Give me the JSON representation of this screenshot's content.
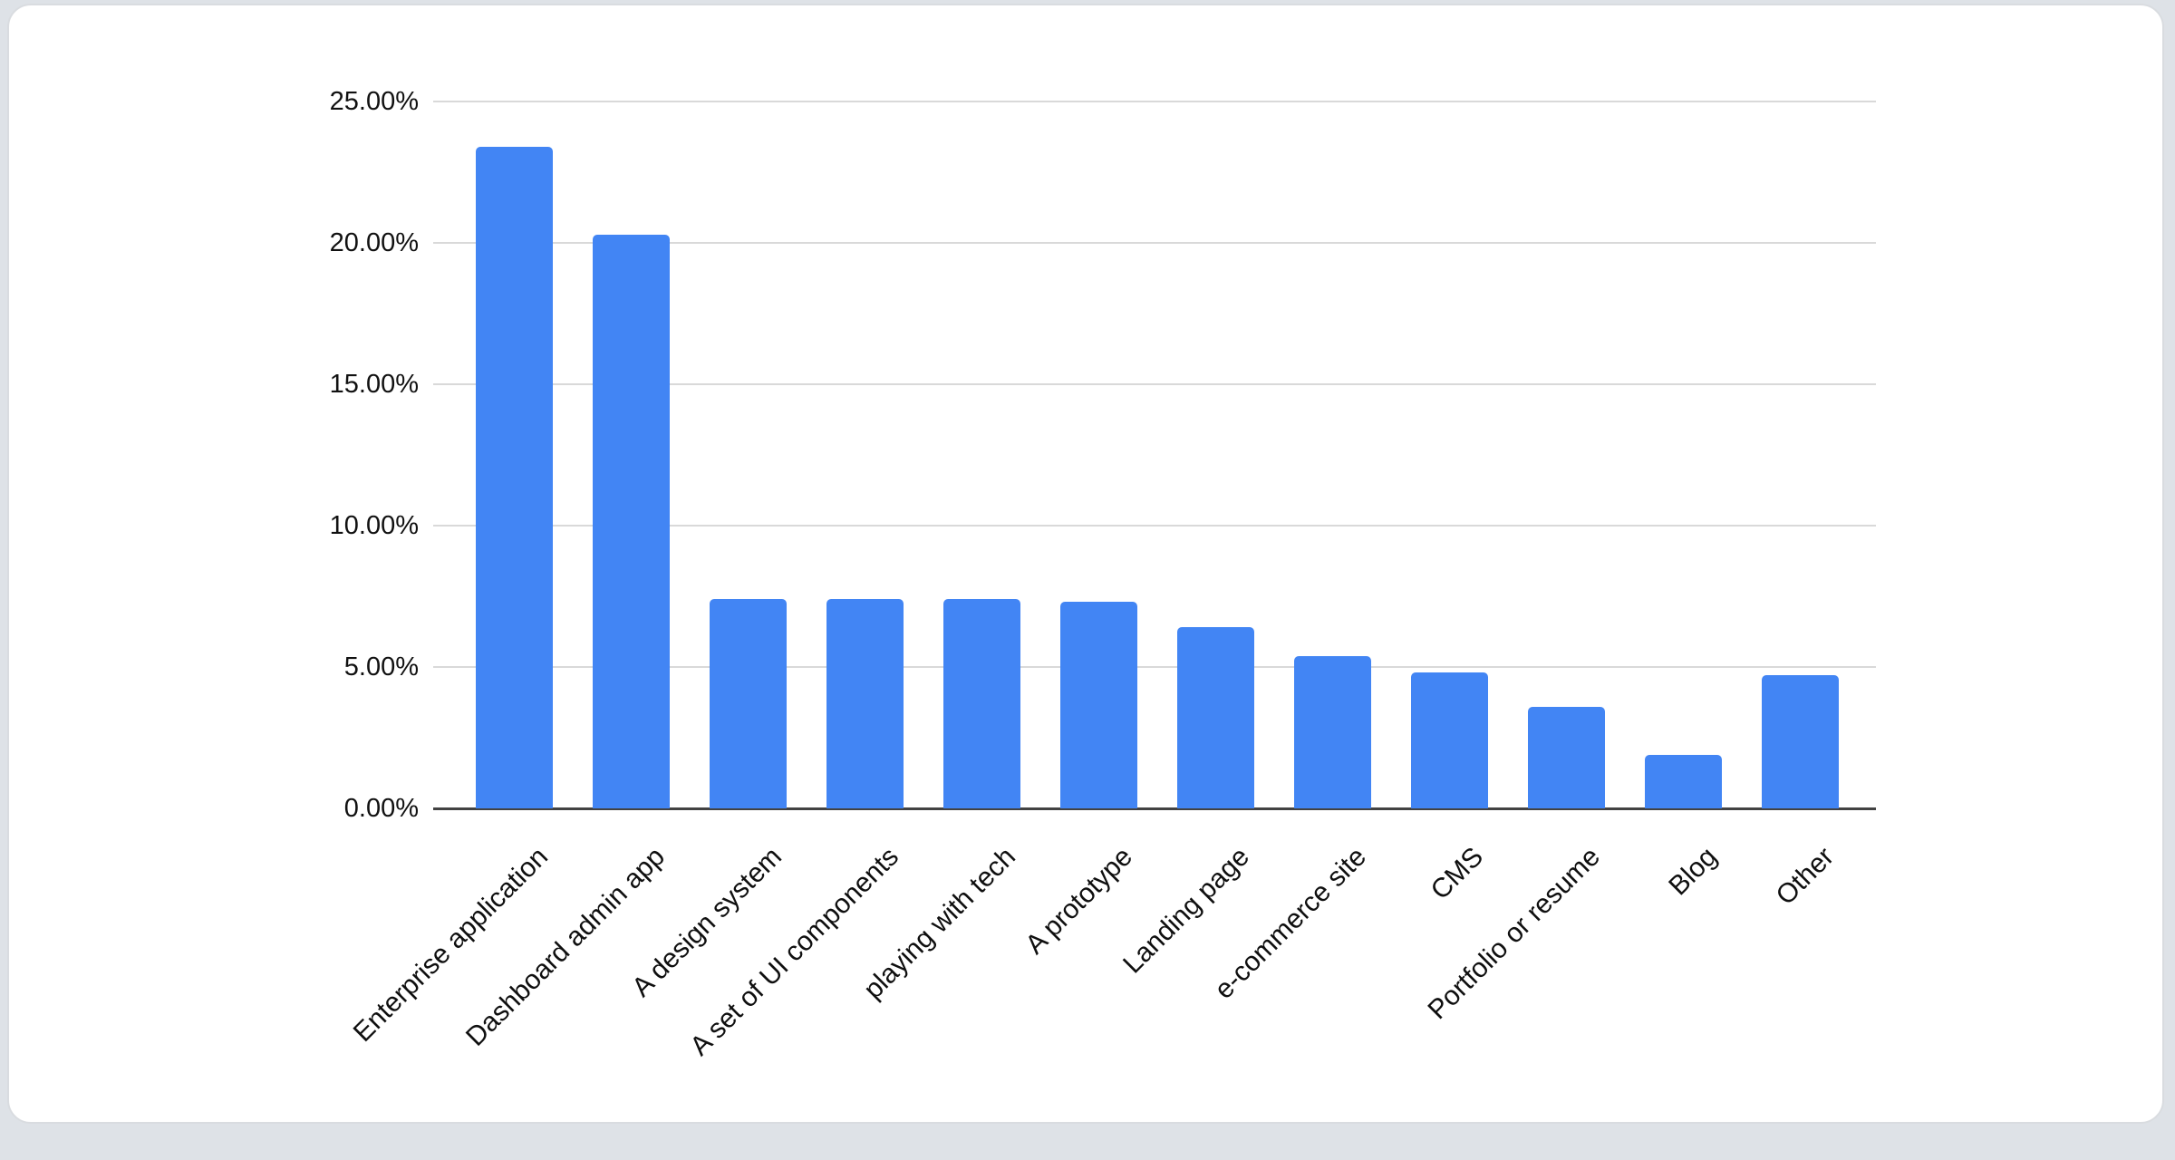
{
  "page": {
    "background_color": "#dee2e7",
    "card_background": "#ffffff",
    "card_border_color": "#d9dce0"
  },
  "chart_data": {
    "type": "bar",
    "title": "",
    "xlabel": "",
    "ylabel": "",
    "categories": [
      "Enterprise application",
      "Dashboard admin app",
      "A design system",
      "A set of UI components",
      "playing with tech",
      "A prototype",
      "Landing page",
      "e-commerce site",
      "CMS",
      "Portfolio or resume",
      "Blog",
      "Other"
    ],
    "values": [
      23.4,
      20.3,
      7.4,
      7.4,
      7.4,
      7.3,
      6.4,
      5.4,
      4.8,
      3.6,
      1.9,
      4.7
    ],
    "value_unit": "%",
    "bar_color": "#4285f4",
    "axis": {
      "ylim": [
        0,
        25
      ],
      "y_tick_values": [
        0,
        5,
        10,
        15,
        20,
        25
      ],
      "y_tick_labels": [
        "0.00%",
        "5.00%",
        "10.00%",
        "15.00%",
        "20.00%",
        "25.00%"
      ],
      "x_label_rotation_deg": -45,
      "grid": true,
      "gridline_color": "#d9d9d9",
      "axis_line_color": "#424242",
      "tick_label_color": "#111111",
      "category_label_color": "#0f0f0f",
      "legend": "none"
    }
  }
}
